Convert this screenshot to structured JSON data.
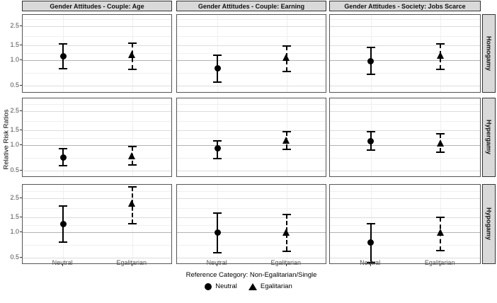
{
  "chart_data": {
    "type": "scatter",
    "subtype": "point-range-errorbar-facets",
    "ylabel": "Relative Risk Ratios",
    "xlabel": "Reference Category: Non-Egalitarian/Single",
    "col_facets": [
      "Gender Attitudes - Couple: Age",
      "Gender Attitudes - Couple: Earning",
      "Gender Attitudes - Society: Jobs Scarce"
    ],
    "row_facets": [
      "Homogamy",
      "Hypergamy",
      "Hypogamy"
    ],
    "x_categories": [
      "Neutral",
      "Egalitarian"
    ],
    "y_scale": "log",
    "y_ticks": [
      0.5,
      1.0,
      1.5,
      2.5
    ],
    "y_minor_gridlines": [
      0.71,
      1.22,
      1.94,
      3.06
    ],
    "reference_line": 1.0,
    "grid": "on",
    "legend_position": "bottom",
    "legend": [
      {
        "label": "Neutral",
        "marker": "circle",
        "linetype": "solid"
      },
      {
        "label": "Egalitarian",
        "marker": "triangle",
        "linetype": "dashed"
      }
    ],
    "panels": [
      {
        "row": "Homogamy",
        "col": "Gender Attitudes - Couple: Age",
        "points": [
          {
            "group": "Neutral",
            "est": 1.12,
            "lo": 0.79,
            "hi": 1.55
          },
          {
            "group": "Egalitarian",
            "est": 1.15,
            "lo": 0.78,
            "hi": 1.6
          }
        ]
      },
      {
        "row": "Homogamy",
        "col": "Gender Attitudes - Couple: Earning",
        "points": [
          {
            "group": "Neutral",
            "est": 0.8,
            "lo": 0.55,
            "hi": 1.14
          },
          {
            "group": "Egalitarian",
            "est": 1.07,
            "lo": 0.74,
            "hi": 1.48
          }
        ]
      },
      {
        "row": "Homogamy",
        "col": "Gender Attitudes - Society: Jobs Scarce",
        "points": [
          {
            "group": "Neutral",
            "est": 0.97,
            "lo": 0.68,
            "hi": 1.42
          },
          {
            "group": "Egalitarian",
            "est": 1.13,
            "lo": 0.78,
            "hi": 1.55
          }
        ]
      },
      {
        "row": "Hypergamy",
        "col": "Gender Attitudes - Couple: Age",
        "points": [
          {
            "group": "Neutral",
            "est": 0.71,
            "lo": 0.57,
            "hi": 0.91
          },
          {
            "group": "Egalitarian",
            "est": 0.74,
            "lo": 0.58,
            "hi": 0.96
          }
        ]
      },
      {
        "row": "Hypergamy",
        "col": "Gender Attitudes - Couple: Earning",
        "points": [
          {
            "group": "Neutral",
            "est": 0.91,
            "lo": 0.69,
            "hi": 1.13
          },
          {
            "group": "Egalitarian",
            "est": 1.13,
            "lo": 0.9,
            "hi": 1.44
          }
        ]
      },
      {
        "row": "Hypergamy",
        "col": "Gender Attitudes - Society: Jobs Scarce",
        "points": [
          {
            "group": "Neutral",
            "est": 1.12,
            "lo": 0.88,
            "hi": 1.43
          },
          {
            "group": "Egalitarian",
            "est": 1.06,
            "lo": 0.82,
            "hi": 1.35
          }
        ]
      },
      {
        "row": "Hypogamy",
        "col": "Gender Attitudes - Couple: Age",
        "points": [
          {
            "group": "Neutral",
            "est": 1.25,
            "lo": 0.76,
            "hi": 2.05
          },
          {
            "group": "Egalitarian",
            "est": 2.18,
            "lo": 1.25,
            "hi": 3.45
          }
        ]
      },
      {
        "row": "Hypogamy",
        "col": "Gender Attitudes - Couple: Earning",
        "points": [
          {
            "group": "Neutral",
            "est": 1.0,
            "lo": 0.57,
            "hi": 1.68
          },
          {
            "group": "Egalitarian",
            "est": 1.0,
            "lo": 0.6,
            "hi": 1.62
          }
        ]
      },
      {
        "row": "Hypogamy",
        "col": "Gender Attitudes - Society: Jobs Scarce",
        "points": [
          {
            "group": "Neutral",
            "est": 0.76,
            "lo": 0.44,
            "hi": 1.27
          },
          {
            "group": "Egalitarian",
            "est": 1.0,
            "lo": 0.61,
            "hi": 1.5
          }
        ]
      }
    ],
    "colors": {
      "strip_bg": "#d9d9d9",
      "strip_border": "#333333",
      "panel_border": "#555555",
      "grid_major": "#dcdcdc",
      "grid_minor": "#efefef",
      "reference_line_color": "#b3b3b3",
      "data": "#000000",
      "tick_label": "#4d4d4d"
    }
  }
}
